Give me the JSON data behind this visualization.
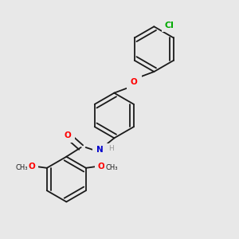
{
  "background_color": "#e8e8e8",
  "bond_color": "#1a1a1a",
  "atom_colors": {
    "O": "#ff0000",
    "N": "#0000cc",
    "Cl": "#00aa00",
    "H": "#808080",
    "C": "#1a1a1a"
  },
  "font_size": 7.5,
  "figsize": [
    3.0,
    3.0
  ],
  "dpi": 100,
  "lw": 1.3,
  "ring_r": 0.085
}
